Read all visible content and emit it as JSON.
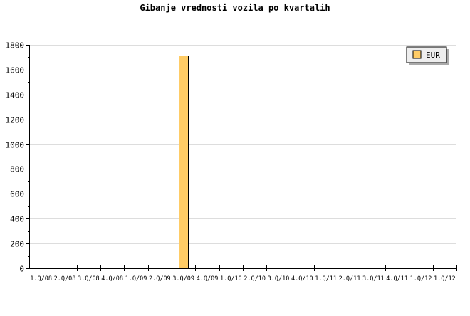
{
  "chart_data": {
    "type": "bar",
    "title": "Gibanje vrednosti vozila po kvartalih",
    "categories": [
      "1.Q/08",
      "2.Q/08",
      "3.Q/08",
      "4.Q/08",
      "1.Q/09",
      "2.Q/09",
      "3.Q/09",
      "4.Q/09",
      "1.Q/10",
      "2.Q/10",
      "3.Q/10",
      "4.Q/10",
      "1.Q/11",
      "2.Q/11",
      "3.Q/11",
      "4.Q/11",
      "1.Q/12",
      "1.Q/12"
    ],
    "series": [
      {
        "name": "EUR",
        "color": "#ffcc66",
        "values": [
          0,
          0,
          0,
          0,
          0,
          0,
          1715,
          0,
          0,
          0,
          0,
          0,
          0,
          0,
          0,
          0,
          0,
          0
        ]
      }
    ],
    "ylim": [
      0,
      1800
    ],
    "yticks": [
      0,
      200,
      400,
      600,
      800,
      1000,
      1200,
      1400,
      1600,
      1800
    ],
    "grid": true,
    "legend": "top-right"
  }
}
